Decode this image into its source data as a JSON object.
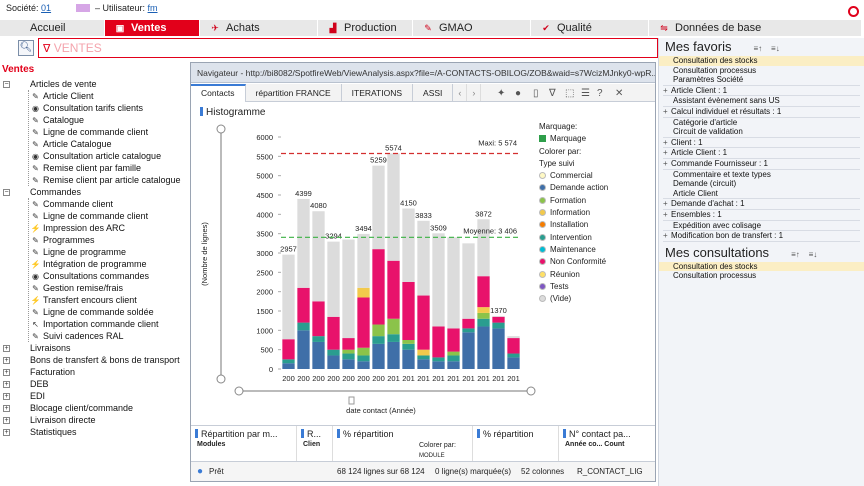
{
  "top": {
    "societe_label": "Société:",
    "societe_value": "01",
    "user_label": "– Utilisateur:",
    "user_value": "fm"
  },
  "menu": [
    {
      "label": "Accueil",
      "icon": ""
    },
    {
      "label": "Ventes",
      "icon": "sales-icon",
      "active": true
    },
    {
      "label": "Achats",
      "icon": "purchases-icon"
    },
    {
      "label": "Production",
      "icon": "production-icon"
    },
    {
      "label": "GMAO",
      "icon": "wrench-icon"
    },
    {
      "label": "Qualité",
      "icon": "quality-icon"
    },
    {
      "label": "Données de base",
      "icon": "base-data-icon"
    }
  ],
  "filter": {
    "text": "VENTES"
  },
  "tree": {
    "root": "Ventes",
    "groups": [
      {
        "label": "Articles de vente",
        "items": [
          "Article Client",
          "Consultation tarifs clients",
          "Catalogue",
          "Ligne de commande client",
          "Article Catalogue",
          "Consultation article catalogue",
          "Remise client par famille",
          "Remise client par article catalogue"
        ]
      },
      {
        "label": "Commandes",
        "items": [
          "Commande client",
          "Ligne de commande client",
          "Impression des ARC",
          "Programmes",
          "Ligne de programme",
          "Intégration de programme",
          "Consultations commandes",
          "Gestion remise/frais",
          "Transfert encours client",
          "Ligne de commande soldée",
          "Importation commande client",
          "Suivi cadences RAL"
        ]
      }
    ],
    "others": [
      "Livraisons",
      "Bons de transfert & bons de transport",
      "Facturation",
      "DEB",
      "EDI",
      "Blocage client/commande",
      "Livraison directe",
      "Statistiques"
    ]
  },
  "navigator": {
    "title": "Navigateur - http://bi8082/SpotfireWeb/ViewAnalysis.aspx?file=/A-CONTACTS-OBILOG/ZOB&waid=s7WcizMJnky0-wpR...",
    "tabs": [
      "Contacts",
      "répartition FRANCE",
      "ITERATIONS",
      "ASSI"
    ],
    "histogram_title": "Histogramme",
    "bottom_panels": [
      "Répartition par m...",
      "R...",
      "% répartition",
      "% répartition",
      "N° contact pa..."
    ],
    "bottom_sub": [
      "Modules",
      "Clien",
      "Colorer par:",
      "MODULE",
      "Année co...",
      "Count"
    ],
    "status": {
      "state": "Prêt",
      "rows": "68 124 lignes sur 68 124",
      "marked": "0 ligne(s) marquée(s)",
      "cols": "52 colonnes",
      "table": "R_CONTACT_LIG"
    }
  },
  "chart_data": {
    "type": "bar",
    "title": "Histogramme",
    "xlabel": "date contact (Année)",
    "ylabel": "(Nombre de lignes)",
    "ylim": [
      0,
      6000
    ],
    "yticks": [
      0,
      500,
      1000,
      1500,
      2000,
      2500,
      3000,
      3500,
      4000,
      4500,
      5000,
      5500,
      6000
    ],
    "categories": [
      "200",
      "200",
      "200",
      "200",
      "200",
      "200",
      "200",
      "201",
      "201",
      "201",
      "201",
      "201",
      "201",
      "201",
      "201",
      "201"
    ],
    "totals": [
      2957,
      4399,
      4080,
      3294,
      3348,
      3494,
      5259,
      5574,
      4150,
      3833,
      3509,
      3406,
      3250,
      3872,
      1370,
      850
    ],
    "total_labels": [
      "2957",
      "4399",
      "4080",
      "3294",
      "",
      "3494",
      "5259",
      "5574",
      "4150",
      "3833",
      "3509",
      "",
      "",
      "3872",
      "1370",
      ""
    ],
    "annotations": {
      "max_label": "Maxi: 5 574",
      "max_value": 5574,
      "mean_label": "Moyenne: 3 406",
      "mean_value": 3406
    },
    "legend": {
      "marking_label": "Marquage:",
      "marking_entry": "Marquage",
      "color_by_label": "Colorer par:",
      "color_by_value": "Type suivi",
      "entries": [
        {
          "name": "Commercial",
          "color": "#fff9c4"
        },
        {
          "name": "Demande action",
          "color": "#3f6fa8"
        },
        {
          "name": "Formation",
          "color": "#8bc34a"
        },
        {
          "name": "Information",
          "color": "#f2c94c"
        },
        {
          "name": "Installation",
          "color": "#f57c00"
        },
        {
          "name": "Intervention",
          "color": "#2a9d8f"
        },
        {
          "name": "Maintenance",
          "color": "#00bcd4"
        },
        {
          "name": "Non Conformité",
          "color": "#e8126b"
        },
        {
          "name": "Réunion",
          "color": "#ffe066"
        },
        {
          "name": "Tests",
          "color": "#7e57c2"
        },
        {
          "name": "(Vide)",
          "color": "#dcdcdc"
        }
      ]
    },
    "stacks": [
      [
        {
          "c": "#3f6fa8",
          "v": 150
        },
        {
          "c": "#2a9d8f",
          "v": 100
        },
        {
          "c": "#e8126b",
          "v": 520
        },
        {
          "c": "#dcdcdc",
          "v": 2187
        }
      ],
      [
        {
          "c": "#3f6fa8",
          "v": 1000
        },
        {
          "c": "#2a9d8f",
          "v": 200
        },
        {
          "c": "#e8126b",
          "v": 900
        },
        {
          "c": "#dcdcdc",
          "v": 2299
        }
      ],
      [
        {
          "c": "#3f6fa8",
          "v": 700
        },
        {
          "c": "#2a9d8f",
          "v": 150
        },
        {
          "c": "#e8126b",
          "v": 900
        },
        {
          "c": "#dcdcdc",
          "v": 2330
        }
      ],
      [
        {
          "c": "#3f6fa8",
          "v": 350
        },
        {
          "c": "#2a9d8f",
          "v": 150
        },
        {
          "c": "#e8126b",
          "v": 850
        },
        {
          "c": "#dcdcdc",
          "v": 1944
        }
      ],
      [
        {
          "c": "#3f6fa8",
          "v": 250
        },
        {
          "c": "#2a9d8f",
          "v": 150
        },
        {
          "c": "#8bc34a",
          "v": 100
        },
        {
          "c": "#e8126b",
          "v": 300
        },
        {
          "c": "#dcdcdc",
          "v": 2548
        }
      ],
      [
        {
          "c": "#3f6fa8",
          "v": 200
        },
        {
          "c": "#2a9d8f",
          "v": 150
        },
        {
          "c": "#8bc34a",
          "v": 200
        },
        {
          "c": "#e8126b",
          "v": 1300
        },
        {
          "c": "#f2c94c",
          "v": 250
        },
        {
          "c": "#dcdcdc",
          "v": 1394
        }
      ],
      [
        {
          "c": "#3f6fa8",
          "v": 650
        },
        {
          "c": "#2a9d8f",
          "v": 200
        },
        {
          "c": "#8bc34a",
          "v": 300
        },
        {
          "c": "#e8126b",
          "v": 1950
        },
        {
          "c": "#dcdcdc",
          "v": 2159
        }
      ],
      [
        {
          "c": "#3f6fa8",
          "v": 700
        },
        {
          "c": "#2a9d8f",
          "v": 200
        },
        {
          "c": "#8bc34a",
          "v": 400
        },
        {
          "c": "#e8126b",
          "v": 1500
        },
        {
          "c": "#dcdcdc",
          "v": 2774
        }
      ],
      [
        {
          "c": "#3f6fa8",
          "v": 500
        },
        {
          "c": "#2a9d8f",
          "v": 150
        },
        {
          "c": "#8bc34a",
          "v": 100
        },
        {
          "c": "#e8126b",
          "v": 1500
        },
        {
          "c": "#dcdcdc",
          "v": 1900
        }
      ],
      [
        {
          "c": "#3f6fa8",
          "v": 250
        },
        {
          "c": "#2a9d8f",
          "v": 100
        },
        {
          "c": "#f2c94c",
          "v": 150
        },
        {
          "c": "#e8126b",
          "v": 1400
        },
        {
          "c": "#dcdcdc",
          "v": 1933
        }
      ],
      [
        {
          "c": "#3f6fa8",
          "v": 200
        },
        {
          "c": "#2a9d8f",
          "v": 100
        },
        {
          "c": "#e8126b",
          "v": 800
        },
        {
          "c": "#dcdcdc",
          "v": 2409
        }
      ],
      [
        {
          "c": "#3f6fa8",
          "v": 200
        },
        {
          "c": "#2a9d8f",
          "v": 150
        },
        {
          "c": "#8bc34a",
          "v": 100
        },
        {
          "c": "#e8126b",
          "v": 600
        },
        {
          "c": "#dcdcdc",
          "v": 2356
        }
      ],
      [
        {
          "c": "#3f6fa8",
          "v": 950
        },
        {
          "c": "#2a9d8f",
          "v": 100
        },
        {
          "c": "#e8126b",
          "v": 250
        },
        {
          "c": "#dcdcdc",
          "v": 1950
        }
      ],
      [
        {
          "c": "#3f6fa8",
          "v": 1100
        },
        {
          "c": "#2a9d8f",
          "v": 200
        },
        {
          "c": "#8bc34a",
          "v": 150
        },
        {
          "c": "#f2c94c",
          "v": 150
        },
        {
          "c": "#e8126b",
          "v": 800
        },
        {
          "c": "#dcdcdc",
          "v": 1472
        }
      ],
      [
        {
          "c": "#3f6fa8",
          "v": 1050
        },
        {
          "c": "#2a9d8f",
          "v": 150
        },
        {
          "c": "#e8126b",
          "v": 150
        },
        {
          "c": "#dcdcdc",
          "v": 20
        }
      ],
      [
        {
          "c": "#3f6fa8",
          "v": 300
        },
        {
          "c": "#2a9d8f",
          "v": 100
        },
        {
          "c": "#e8126b",
          "v": 400
        },
        {
          "c": "#dcdcdc",
          "v": 50
        }
      ]
    ]
  },
  "favoris": {
    "title": "Mes favoris",
    "rows": [
      {
        "t": "Consultation des stocks",
        "sel": true
      },
      {
        "t": "Consultation processus"
      },
      {
        "t": "Paramètres Société"
      },
      {
        "t": "Article Client : 1",
        "grp": true
      },
      {
        "t": "Assistant évènement sans US"
      },
      {
        "t": "Calcul individuel et résultats : 1",
        "grp": true
      },
      {
        "t": "Catégorie d'article"
      },
      {
        "t": "Circuit de validation"
      },
      {
        "t": "Client : 1",
        "grp": true
      },
      {
        "t": "Article Client : 1",
        "grp": true
      },
      {
        "t": "Commande Fournisseur : 1",
        "grp": true
      },
      {
        "t": "Commentaire et texte types"
      },
      {
        "t": "Demande (circuit)"
      },
      {
        "t": "Article Client"
      },
      {
        "t": "Demande d'achat : 1",
        "grp": true
      },
      {
        "t": "Ensembles : 1",
        "grp": true
      },
      {
        "t": "Expédition avec colisage"
      },
      {
        "t": "Modification bon de transfert : 1",
        "grp": true
      }
    ]
  },
  "consultations": {
    "title": "Mes consultations",
    "rows": [
      {
        "t": "Consultation des stocks",
        "sel": true
      },
      {
        "t": "Consultation processus"
      }
    ]
  },
  "sort_labels": {
    "asc": "≡↑",
    "desc": "≡↓"
  }
}
